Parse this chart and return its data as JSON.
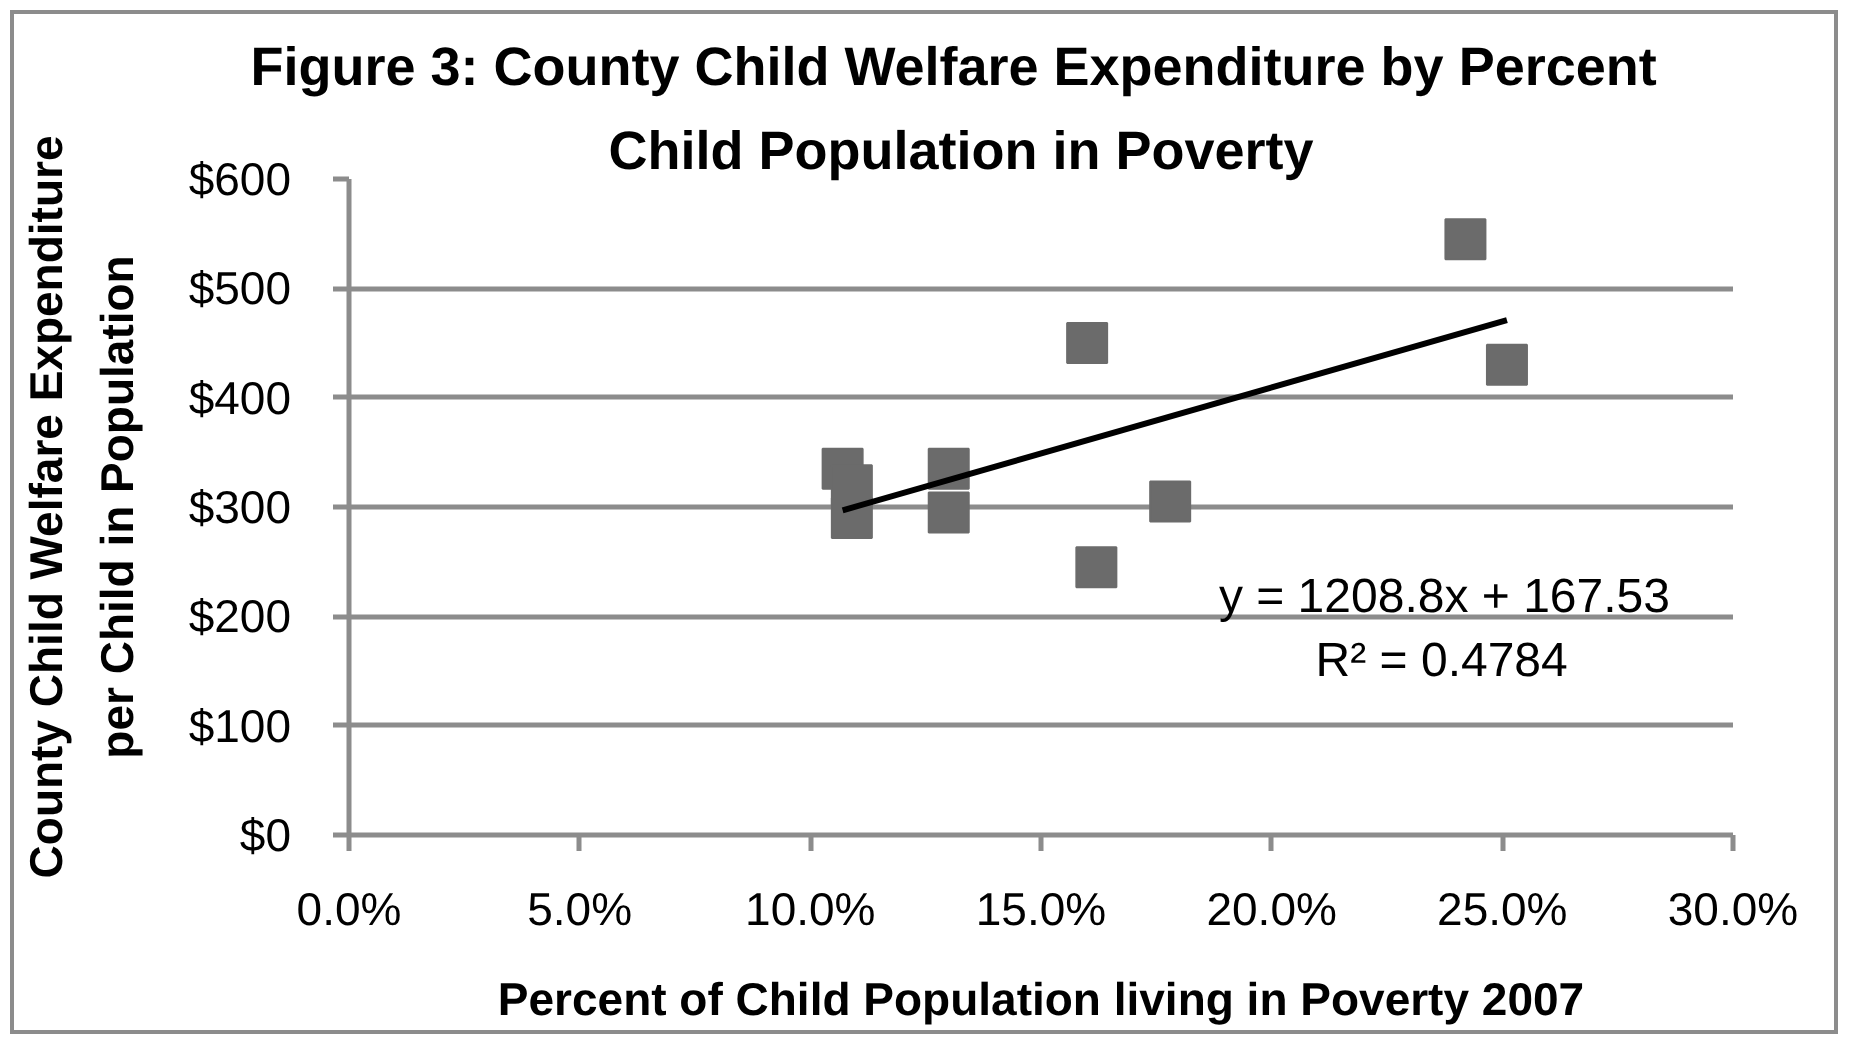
{
  "chart_data": {
    "type": "scatter",
    "title": "Figure 3:  County Child Welfare Expenditure by Percent Child Population in Poverty",
    "xlabel": "Percent of Child Population living in Poverty 2007",
    "ylabel": "County Child Welfare Expenditure per Child in Population",
    "xlim": [
      0,
      30
    ],
    "xticks": [
      {
        "value": 0,
        "label": "0.0%"
      },
      {
        "value": 5,
        "label": "5.0%"
      },
      {
        "value": 10,
        "label": "10.0%"
      },
      {
        "value": 15,
        "label": "15.0%"
      },
      {
        "value": 20,
        "label": "20.0%"
      },
      {
        "value": 25,
        "label": "25.0%"
      },
      {
        "value": 30,
        "label": "30.0%"
      }
    ],
    "ylim": [
      0,
      600
    ],
    "yticks": [
      {
        "value": 0,
        "label": "$0"
      },
      {
        "value": 100,
        "label": "$100"
      },
      {
        "value": 200,
        "label": "$200"
      },
      {
        "value": 300,
        "label": "$300"
      },
      {
        "value": 400,
        "label": "$400"
      },
      {
        "value": 500,
        "label": "$500"
      },
      {
        "value": 600,
        "label": "$600"
      }
    ],
    "grid": "y",
    "marker": "square",
    "annotations": [
      "y = 1208.8x + 167.53",
      "R² = 0.4784"
    ],
    "series": [
      {
        "color": "#6b6b6b",
        "x": [
          10.7,
          10.9,
          10.9,
          13.0,
          13.0,
          16.0,
          16.2,
          17.8,
          24.2,
          25.1
        ],
        "values": [
          335,
          320,
          290,
          335,
          295,
          450,
          245,
          305,
          545,
          430
        ]
      },
      {
        "type": "line",
        "color": "#000000",
        "marker": "none",
        "line_style": "solid",
        "x": [
          10.7,
          25.1
        ],
        "values": [
          297,
          471
        ]
      }
    ]
  }
}
